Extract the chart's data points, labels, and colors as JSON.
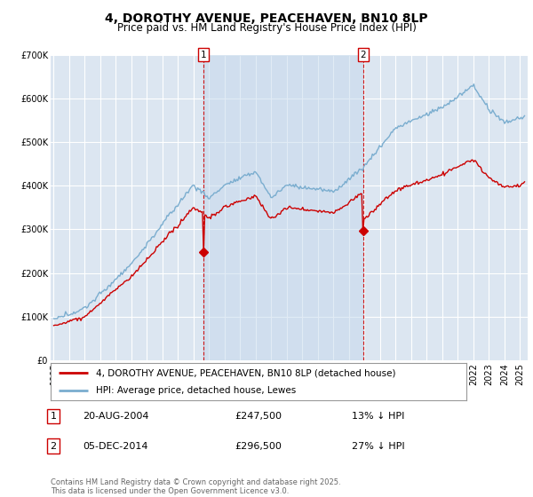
{
  "title": "4, DOROTHY AVENUE, PEACEHAVEN, BN10 8LP",
  "subtitle": "Price paid vs. HM Land Registry's House Price Index (HPI)",
  "ylim": [
    0,
    700000
  ],
  "yticks": [
    0,
    100000,
    200000,
    300000,
    400000,
    500000,
    600000,
    700000
  ],
  "ytick_labels": [
    "£0",
    "£100K",
    "£200K",
    "£300K",
    "£400K",
    "£500K",
    "£600K",
    "£700K"
  ],
  "xlim_start": 1994.8,
  "xlim_end": 2025.5,
  "line_color_red": "#cc0000",
  "line_color_blue": "#7aadcf",
  "bg_color": "#dce6f1",
  "shade_color": "#c5d8ec",
  "grid_color": "#ffffff",
  "vline1_x": 2004.62,
  "vline2_x": 2014.92,
  "transaction1_price_val": 247500,
  "transaction2_price_val": 296500,
  "transaction1_date": "20-AUG-2004",
  "transaction1_price": "£247,500",
  "transaction1_note": "13% ↓ HPI",
  "transaction2_date": "05-DEC-2014",
  "transaction2_price": "£296,500",
  "transaction2_note": "27% ↓ HPI",
  "legend_line1": "4, DOROTHY AVENUE, PEACEHAVEN, BN10 8LP (detached house)",
  "legend_line2": "HPI: Average price, detached house, Lewes",
  "footer": "Contains HM Land Registry data © Crown copyright and database right 2025.\nThis data is licensed under the Open Government Licence v3.0.",
  "title_fontsize": 10,
  "subtitle_fontsize": 8.5,
  "tick_fontsize": 7,
  "legend_fontsize": 7.5,
  "annotation_fontsize": 8,
  "footer_fontsize": 6
}
